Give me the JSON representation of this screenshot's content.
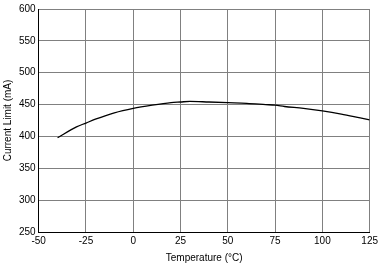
{
  "chart_data": {
    "type": "line",
    "x_label": "Temperature (°C)",
    "y_label": "Current Limit (mA)",
    "x": [
      -40,
      -30,
      -25,
      -20,
      -10,
      0,
      10,
      20,
      25,
      30,
      40,
      50,
      60,
      70,
      75,
      80,
      90,
      100,
      110,
      120,
      125
    ],
    "values": [
      398,
      415,
      421,
      427,
      437,
      444,
      449,
      453,
      454,
      455,
      454,
      453,
      452,
      450,
      449,
      447,
      444,
      440,
      435,
      429,
      426
    ],
    "color": "#000000",
    "marker": "none",
    "xlim": [
      -50,
      125
    ],
    "xticks": [
      -50,
      -25,
      0,
      25,
      50,
      75,
      100,
      125
    ],
    "ylim": [
      250,
      600
    ],
    "yticks": [
      250,
      300,
      350,
      400,
      450,
      500,
      550,
      600
    ],
    "grid": true
  }
}
